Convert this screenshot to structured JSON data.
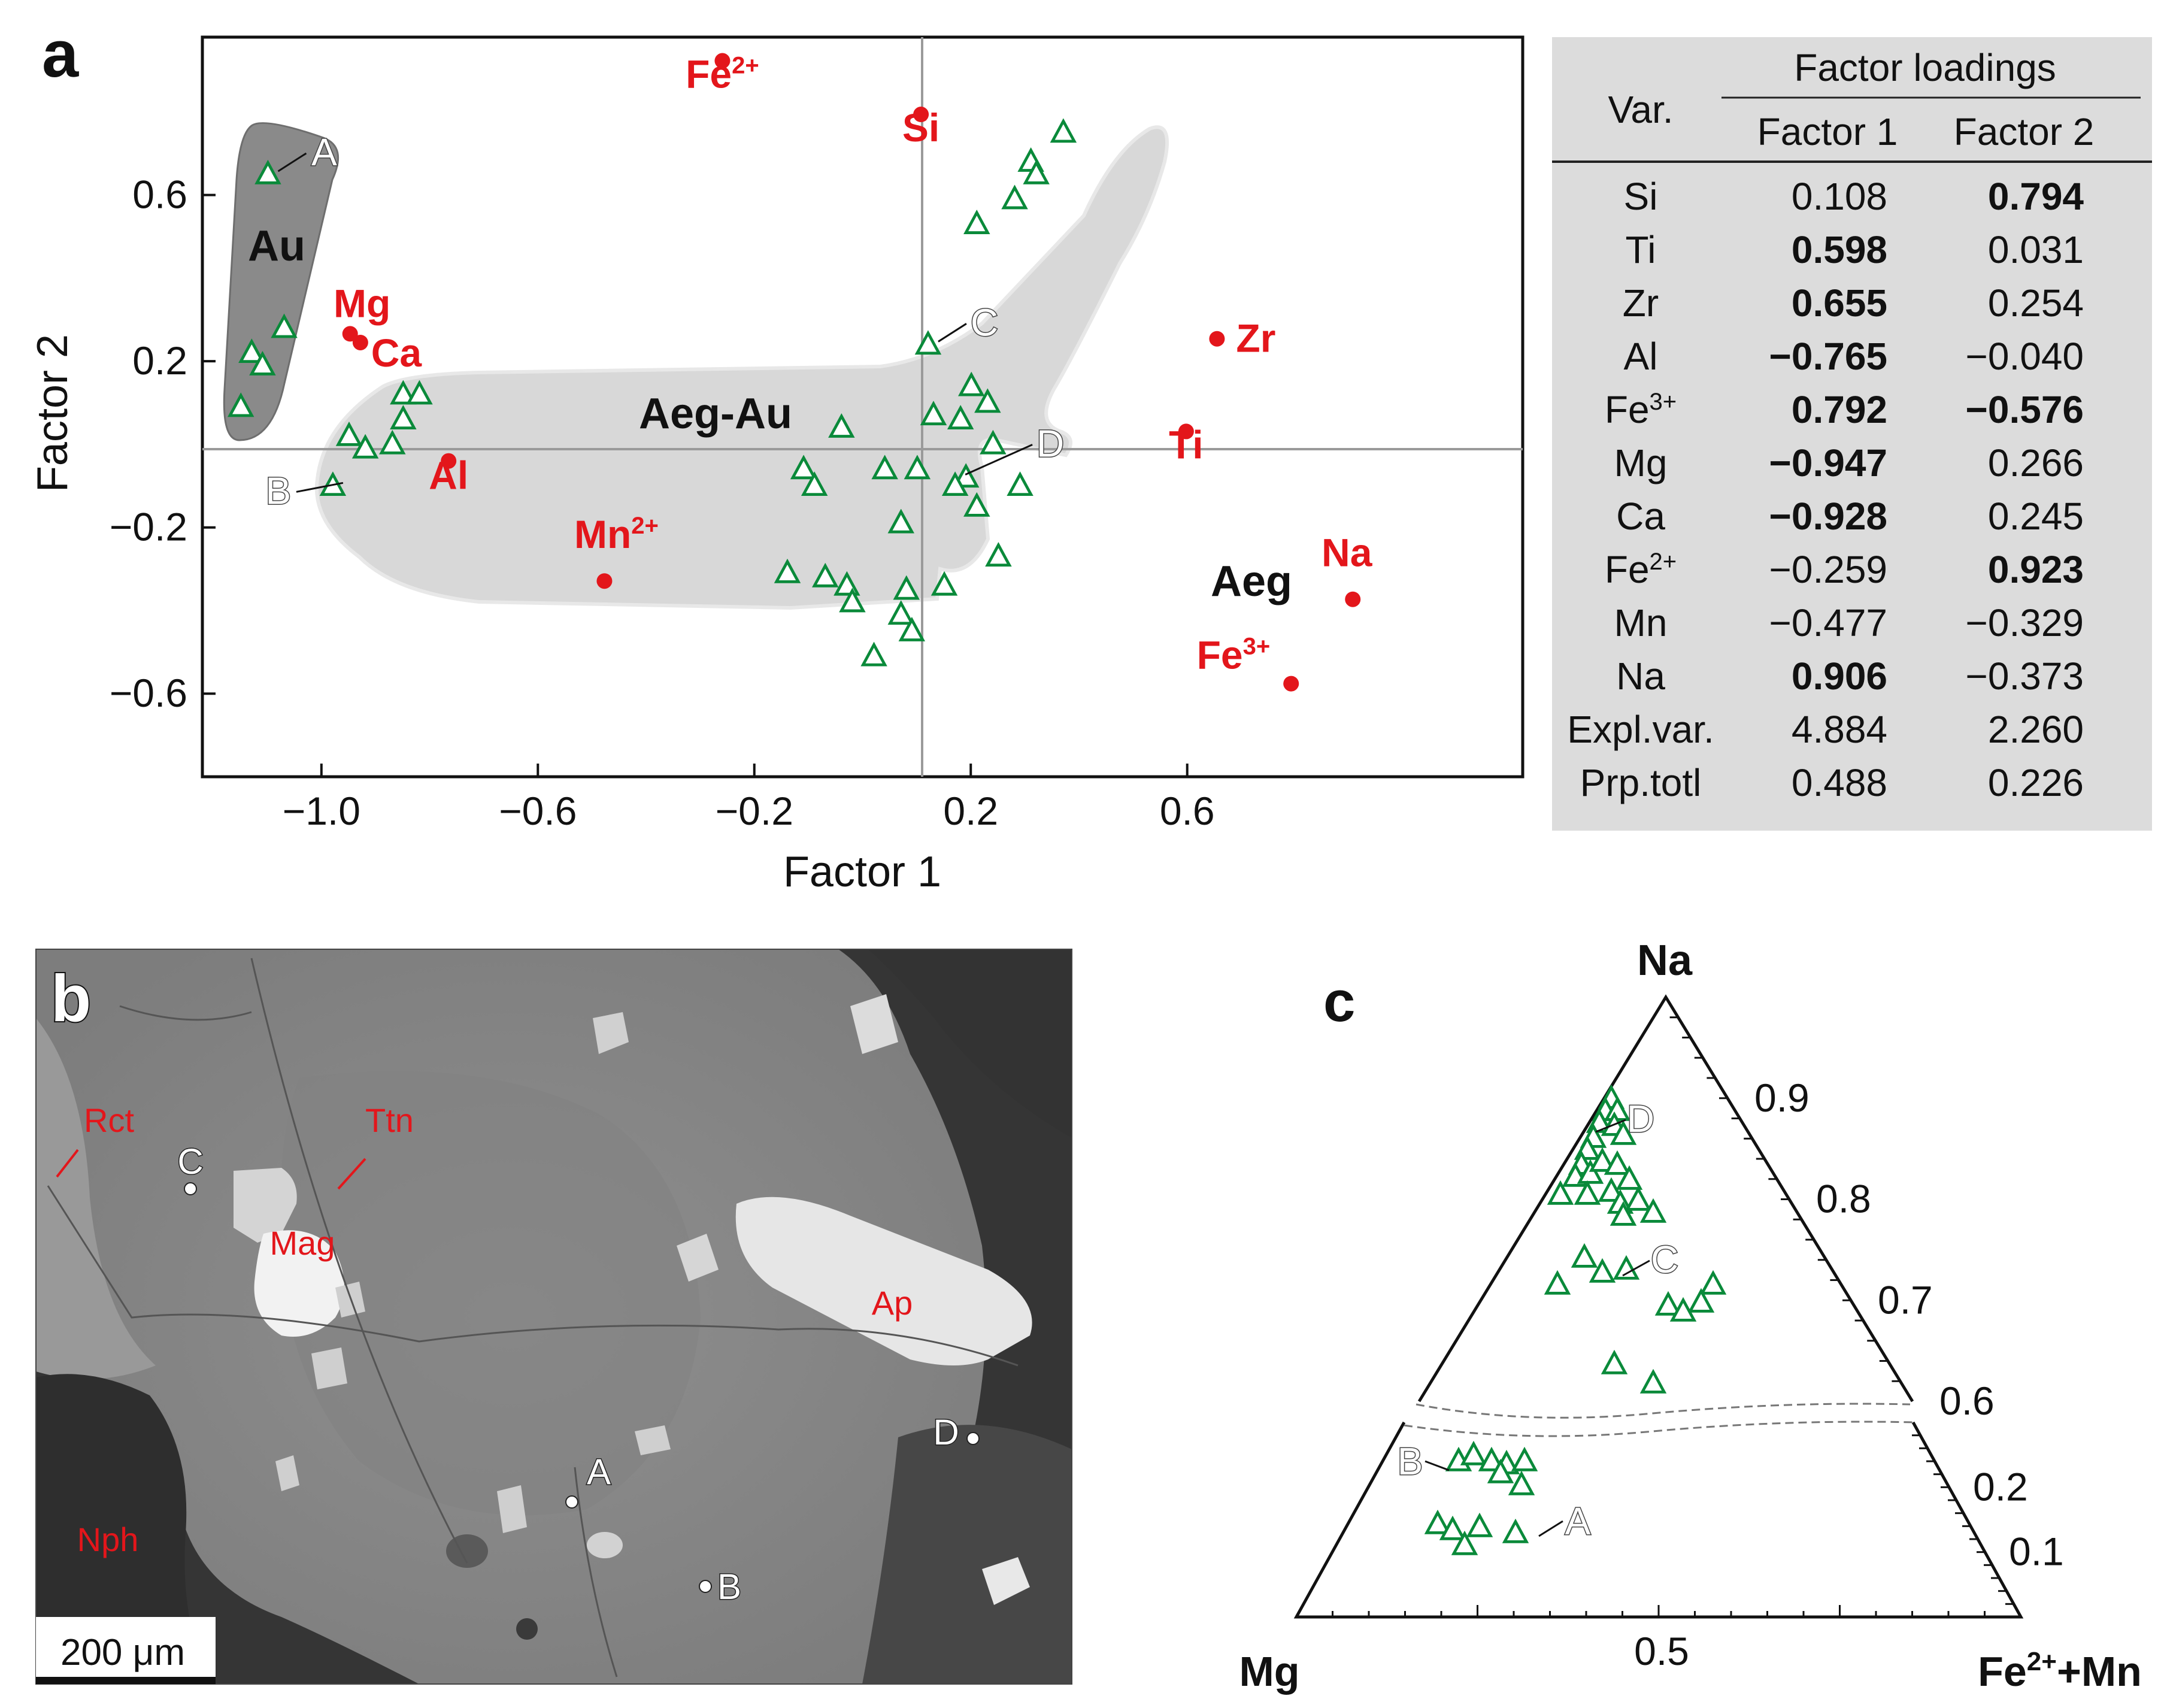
{
  "panel_a": {
    "letter": "a",
    "chart_data": {
      "type": "scatter",
      "xlabel": "Factor 1",
      "ylabel": "Factor 2",
      "xlim": [
        -1.22,
        1.22
      ],
      "ylim": [
        -0.8,
        0.98
      ],
      "xticks": [
        -1.0,
        -0.6,
        -0.2,
        0.2,
        0.6
      ],
      "xtick_labels": [
        "−1.0",
        "−0.6",
        "−0.2",
        "0.2",
        "0.6"
      ],
      "yticks": [
        0.6,
        0.2,
        -0.2,
        -0.6
      ],
      "ytick_labels": [
        "0.6",
        "0.2",
        "−0.2",
        "−0.6"
      ],
      "variables": [
        {
          "name": "Fe",
          "sup": "2+",
          "x": -0.259,
          "y": 0.923
        },
        {
          "name": "Si",
          "sup": "",
          "x": 0.108,
          "y": 0.794
        },
        {
          "name": "Mg",
          "sup": "",
          "x": -0.947,
          "y": 0.266
        },
        {
          "name": "Ca",
          "sup": "",
          "x": -0.928,
          "y": 0.245
        },
        {
          "name": "Al",
          "sup": "",
          "x": -0.765,
          "y": -0.04
        },
        {
          "name": "Mn",
          "sup": "2+",
          "x": -0.477,
          "y": -0.329
        },
        {
          "name": "Zr",
          "sup": "",
          "x": 0.655,
          "y": 0.254
        },
        {
          "name": "Ti",
          "sup": "",
          "x": 0.598,
          "y": 0.031
        },
        {
          "name": "Na",
          "sup": "",
          "x": 0.906,
          "y": -0.373
        },
        {
          "name": "Fe",
          "sup": "3+",
          "x": 0.792,
          "y": -0.576
        }
      ],
      "samples": [
        [
          -1.1,
          0.65
        ],
        [
          -1.07,
          0.28
        ],
        [
          -1.13,
          0.22
        ],
        [
          -1.11,
          0.19
        ],
        [
          -1.15,
          0.09
        ],
        [
          -0.85,
          0.12
        ],
        [
          -0.82,
          0.12
        ],
        [
          -0.85,
          0.06
        ],
        [
          -0.87,
          0.0
        ],
        [
          -0.92,
          -0.01
        ],
        [
          -0.95,
          0.02
        ],
        [
          -0.98,
          -0.1
        ],
        [
          -0.11,
          -0.06
        ],
        [
          -0.09,
          -0.1
        ],
        [
          -0.04,
          0.04
        ],
        [
          0.04,
          -0.06
        ],
        [
          0.1,
          -0.06
        ],
        [
          0.07,
          -0.19
        ],
        [
          -0.14,
          -0.31
        ],
        [
          -0.07,
          -0.32
        ],
        [
          -0.03,
          -0.34
        ],
        [
          -0.02,
          -0.38
        ],
        [
          0.08,
          -0.35
        ],
        [
          0.07,
          -0.41
        ],
        [
          0.09,
          -0.45
        ],
        [
          0.02,
          -0.51
        ],
        [
          0.15,
          -0.34
        ],
        [
          0.12,
          0.24
        ],
        [
          0.13,
          0.07
        ],
        [
          0.18,
          0.06
        ],
        [
          0.2,
          0.14
        ],
        [
          0.23,
          0.1
        ],
        [
          0.24,
          0.0
        ],
        [
          0.19,
          -0.08
        ],
        [
          0.17,
          -0.1
        ],
        [
          0.21,
          -0.15
        ],
        [
          0.29,
          -0.1
        ],
        [
          0.25,
          -0.27
        ],
        [
          0.21,
          0.53
        ],
        [
          0.28,
          0.59
        ],
        [
          0.31,
          0.68
        ],
        [
          0.32,
          0.65
        ],
        [
          0.37,
          0.75
        ]
      ],
      "labeled_points": [
        {
          "label": "A",
          "x": -1.1,
          "y": 0.65
        },
        {
          "label": "B",
          "x": -0.98,
          "y": -0.1
        },
        {
          "label": "C",
          "x": 0.12,
          "y": 0.24
        },
        {
          "label": "D",
          "x": 0.17,
          "y": -0.08
        }
      ],
      "fields": [
        "Au",
        "Aeg-Au",
        "Aeg"
      ]
    }
  },
  "table": {
    "header_var": "Var.",
    "header_group": "Factor loadings",
    "header_f1": "Factor 1",
    "header_f2": "Factor 2",
    "rows": [
      {
        "var": "Si",
        "sup": "",
        "f1": "0.108",
        "f2": "0.794",
        "f1b": false,
        "f2b": true
      },
      {
        "var": "Ti",
        "sup": "",
        "f1": "0.598",
        "f2": "0.031",
        "f1b": true,
        "f2b": false
      },
      {
        "var": "Zr",
        "sup": "",
        "f1": "0.655",
        "f2": "0.254",
        "f1b": true,
        "f2b": false
      },
      {
        "var": "Al",
        "sup": "",
        "f1": "−0.765",
        "f2": "−0.040",
        "f1b": true,
        "f2b": false
      },
      {
        "var": "Fe",
        "sup": "3+",
        "f1": "0.792",
        "f2": "−0.576",
        "f1b": true,
        "f2b": true
      },
      {
        "var": "Mg",
        "sup": "",
        "f1": "−0.947",
        "f2": "0.266",
        "f1b": true,
        "f2b": false
      },
      {
        "var": "Ca",
        "sup": "",
        "f1": "−0.928",
        "f2": "0.245",
        "f1b": true,
        "f2b": false
      },
      {
        "var": "Fe",
        "sup": "2+",
        "f1": "−0.259",
        "f2": "0.923",
        "f1b": false,
        "f2b": true
      },
      {
        "var": "Mn",
        "sup": "",
        "f1": "−0.477",
        "f2": "−0.329",
        "f1b": false,
        "f2b": false
      },
      {
        "var": "Na",
        "sup": "",
        "f1": "0.906",
        "f2": "−0.373",
        "f1b": true,
        "f2b": false
      },
      {
        "var": "Expl.var.",
        "sup": "",
        "f1": "4.884",
        "f2": "2.260",
        "f1b": false,
        "f2b": false
      },
      {
        "var": "Prp.totl",
        "sup": "",
        "f1": "0.488",
        "f2": "0.226",
        "f1b": false,
        "f2b": false
      }
    ]
  },
  "panel_b": {
    "letter": "b",
    "minerals": [
      "Rct",
      "Ttn",
      "Mag",
      "Ap",
      "Nph"
    ],
    "points": [
      "A",
      "B",
      "C",
      "D"
    ],
    "scale_bar": "200 μm"
  },
  "panel_c": {
    "letter": "c",
    "apex_top": "Na",
    "apex_left": "Mg",
    "apex_right_main": "Fe",
    "apex_right_sup": "2+",
    "apex_right_rest": "+Mn",
    "bottom_tick": "0.5",
    "upper_ticks": [
      {
        "label": "0.9",
        "value": 0.9
      },
      {
        "label": "0.8",
        "value": 0.8
      },
      {
        "label": "0.7",
        "value": 0.7
      },
      {
        "label": "0.6",
        "value": 0.6
      }
    ],
    "lower_ticks": [
      {
        "label": "0.2",
        "value": 0.2
      },
      {
        "label": "0.1",
        "value": 0.1
      }
    ],
    "labeled_points": [
      "D",
      "C",
      "B",
      "A"
    ]
  }
}
